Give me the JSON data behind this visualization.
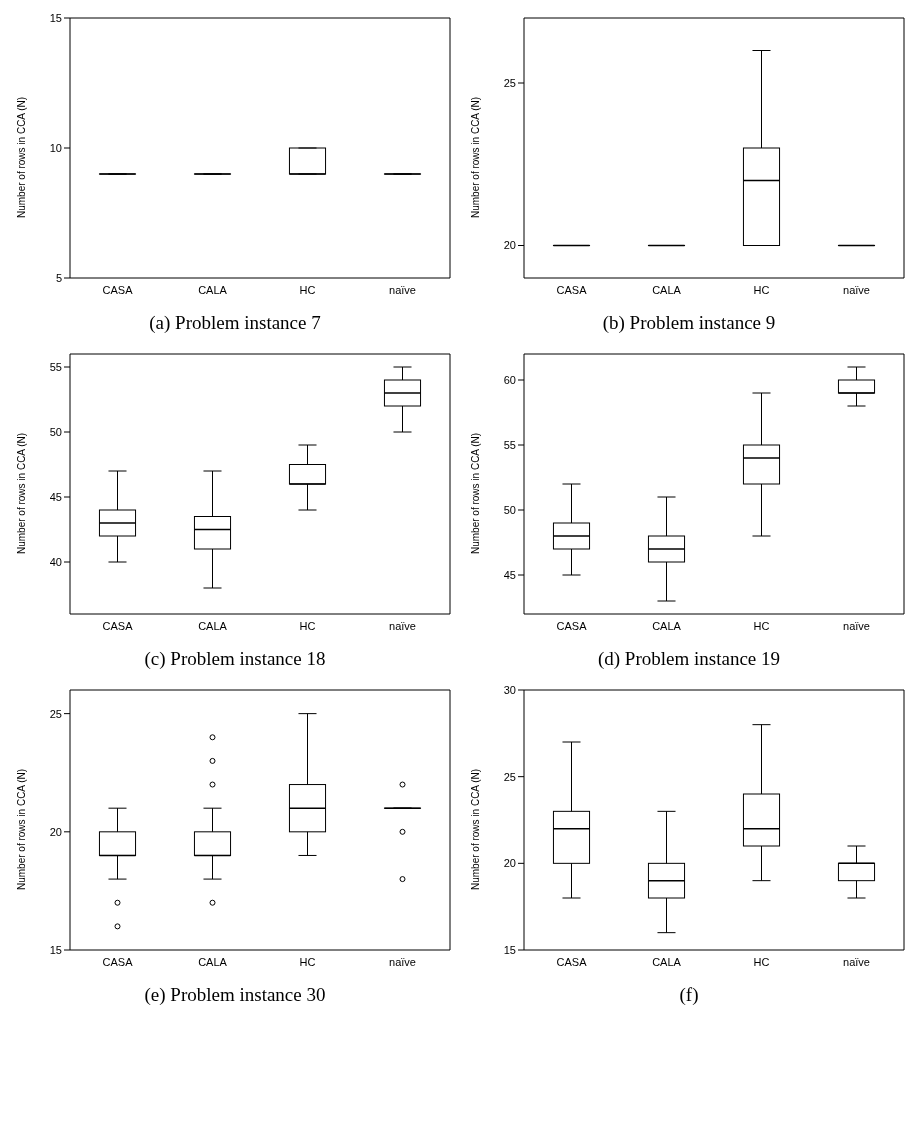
{
  "chart_data": [
    {
      "type": "box",
      "title": "(a) Problem instance 7",
      "ylabel": "Number of rows in CCA (N)",
      "categories": [
        "CASA",
        "CALA",
        "HC",
        "naïve"
      ],
      "ylim": [
        5,
        15
      ],
      "yticks": [
        5,
        10,
        15
      ],
      "grid": false,
      "color": "#000000",
      "boxes": [
        {
          "low": 9,
          "q1": 9,
          "median": 9,
          "q3": 9,
          "high": 9
        },
        {
          "low": 9,
          "q1": 9,
          "median": 9,
          "q3": 9,
          "high": 9
        },
        {
          "low": 9,
          "q1": 9,
          "median": 9,
          "q3": 10,
          "high": 10
        },
        {
          "low": 9,
          "q1": 9,
          "median": 9,
          "q3": 9,
          "high": 9
        }
      ]
    },
    {
      "type": "box",
      "title": "(b) Problem instance 9",
      "ylabel": "Number of rows in CCA (N)",
      "categories": [
        "CASA",
        "CALA",
        "HC",
        "naïve"
      ],
      "ylim": [
        19,
        27
      ],
      "yticks": [
        20,
        25
      ],
      "grid": false,
      "color": "#000000",
      "boxes": [
        {
          "low": 20,
          "q1": 20,
          "median": 20,
          "q3": 20,
          "high": 20
        },
        {
          "low": 20,
          "q1": 20,
          "median": 20,
          "q3": 20,
          "high": 20
        },
        {
          "low": 20,
          "q1": 20,
          "median": 22,
          "q3": 23,
          "high": 26
        },
        {
          "low": 20,
          "q1": 20,
          "median": 20,
          "q3": 20,
          "high": 20
        }
      ]
    },
    {
      "type": "box",
      "title": "(c) Problem instance 18",
      "ylabel": "Number of rows in CCA (N)",
      "categories": [
        "CASA",
        "CALA",
        "HC",
        "naïve"
      ],
      "ylim": [
        36,
        56
      ],
      "yticks": [
        40,
        45,
        50,
        55
      ],
      "grid": false,
      "color": "#000000",
      "boxes": [
        {
          "low": 40,
          "q1": 42,
          "median": 43,
          "q3": 44,
          "high": 47
        },
        {
          "low": 38,
          "q1": 41,
          "median": 42.5,
          "q3": 43.5,
          "high": 47
        },
        {
          "low": 44,
          "q1": 46,
          "median": 46,
          "q3": 47.5,
          "high": 49
        },
        {
          "low": 50,
          "q1": 52,
          "median": 53,
          "q3": 54,
          "high": 55
        }
      ]
    },
    {
      "type": "box",
      "title": "(d) Problem instance 19",
      "ylabel": "Number of rows in CCA (N)",
      "categories": [
        "CASA",
        "CALA",
        "HC",
        "naïve"
      ],
      "ylim": [
        42,
        62
      ],
      "yticks": [
        45,
        50,
        55,
        60
      ],
      "grid": false,
      "color": "#000000",
      "boxes": [
        {
          "low": 45,
          "q1": 47,
          "median": 48,
          "q3": 49,
          "high": 52
        },
        {
          "low": 43,
          "q1": 46,
          "median": 47,
          "q3": 48,
          "high": 51
        },
        {
          "low": 48,
          "q1": 52,
          "median": 54,
          "q3": 55,
          "high": 59
        },
        {
          "low": 58,
          "q1": 59,
          "median": 59,
          "q3": 60,
          "high": 61
        }
      ]
    },
    {
      "type": "box",
      "title": "(e) Problem instance 30",
      "ylabel": "Number of rows in CCA (N)",
      "categories": [
        "CASA",
        "CALA",
        "HC",
        "naïve"
      ],
      "ylim": [
        15,
        26
      ],
      "yticks": [
        15,
        20,
        25
      ],
      "grid": false,
      "color": "#000000",
      "boxes": [
        {
          "low": 18,
          "q1": 19,
          "median": 19,
          "q3": 20,
          "high": 21,
          "outliers": [
            17,
            16
          ]
        },
        {
          "low": 18,
          "q1": 19,
          "median": 19,
          "q3": 20,
          "high": 21,
          "outliers": [
            24,
            23,
            22,
            17
          ]
        },
        {
          "low": 19,
          "q1": 20,
          "median": 21,
          "q3": 22,
          "high": 25
        },
        {
          "low": 21,
          "q1": 21,
          "median": 21,
          "q3": 21,
          "high": 21,
          "outliers": [
            22,
            20,
            18
          ]
        }
      ]
    },
    {
      "type": "box",
      "title": "(f)",
      "ylabel": "Number of rows in CCA (N)",
      "categories": [
        "CASA",
        "CALA",
        "HC",
        "naïve"
      ],
      "ylim": [
        15,
        30
      ],
      "yticks": [
        15,
        20,
        25,
        30
      ],
      "grid": false,
      "color": "#000000",
      "boxes": [
        {
          "low": 18,
          "q1": 20,
          "median": 22,
          "q3": 23,
          "high": 27
        },
        {
          "low": 16,
          "q1": 18,
          "median": 19,
          "q3": 20,
          "high": 23
        },
        {
          "low": 19,
          "q1": 21,
          "median": 22,
          "q3": 24,
          "high": 28
        },
        {
          "low": 18,
          "q1": 19,
          "median": 20,
          "q3": 20,
          "high": 21
        }
      ]
    }
  ]
}
